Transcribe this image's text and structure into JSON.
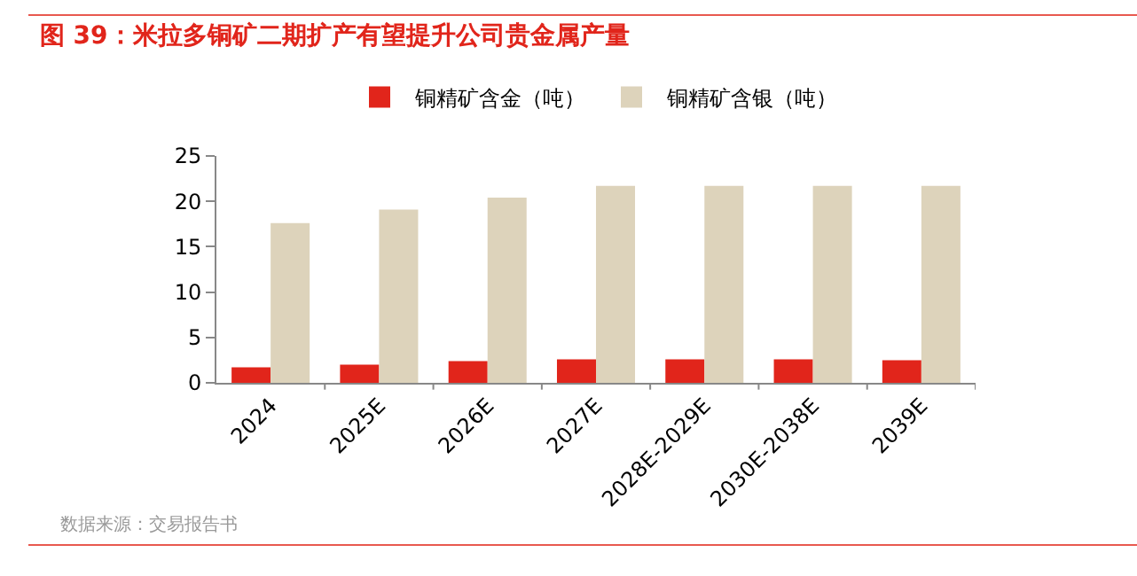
{
  "chart_data": {
    "type": "bar",
    "title": "图 39：米拉多铜矿二期扩产有望提升公司贵金属产量",
    "categories": [
      "2024",
      "2025E",
      "2026E",
      "2027E",
      "2028E-2029E",
      "2030E-2038E",
      "2039E"
    ],
    "series": [
      {
        "name": "铜精矿含金（吨）",
        "color": "#e1251b",
        "values": [
          1.7,
          2.0,
          2.4,
          2.6,
          2.6,
          2.6,
          2.5
        ]
      },
      {
        "name": "铜精矿含银（吨）",
        "color": "#ddd3bb",
        "values": [
          17.6,
          19.1,
          20.4,
          21.7,
          21.7,
          21.7,
          21.7
        ]
      }
    ],
    "ylim": [
      0,
      25
    ],
    "yticks": [
      0,
      5,
      10,
      15,
      20,
      25
    ],
    "grid": false,
    "legend": "top",
    "annotations": [
      "数据来源：交易报告书"
    ]
  }
}
